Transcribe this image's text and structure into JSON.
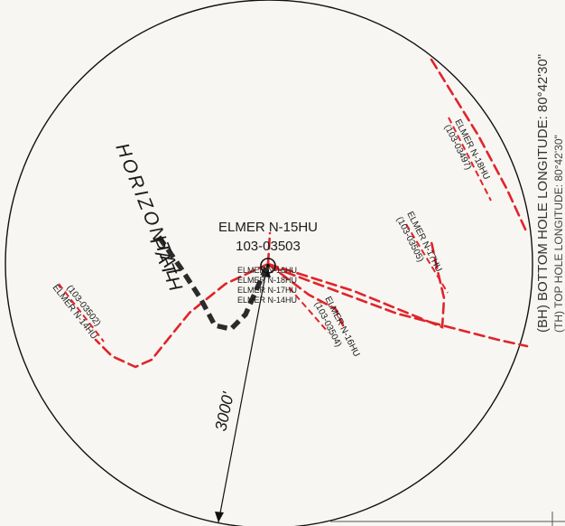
{
  "title": {
    "well_name": "ELMER N-15HU",
    "well_permit": "103-03503"
  },
  "horizontal_path_label": [
    "HORIZONTAL",
    "PATH"
  ],
  "radius_label": "3000'",
  "pad_wells": [
    "ELMER N-16HU",
    "ELMER N-18HU",
    "ELMER N-17HU",
    "ELMER N-14HU"
  ],
  "offset_wells": [
    {
      "name": "ELMER N-18HU",
      "permit": "(103-03497)"
    },
    {
      "name": "ELMER N-17HU",
      "permit": "(103-03505)"
    },
    {
      "name": "ELMER N-16HU",
      "permit": "(103-03504)"
    },
    {
      "name": "ELMER N-14HU",
      "permit": "(103-03502)"
    }
  ],
  "side_text": {
    "bottom_hole": "(BH) BOTTOM HOLE LONGITUDE: 80°42'30\"",
    "top_hole": "(TH) TOP HOLE LONGITUDE: 80°42'30\""
  },
  "colors": {
    "offset_line": "#e0242b",
    "horizontal_path": "#2b2b2b",
    "circle": "#111111"
  }
}
